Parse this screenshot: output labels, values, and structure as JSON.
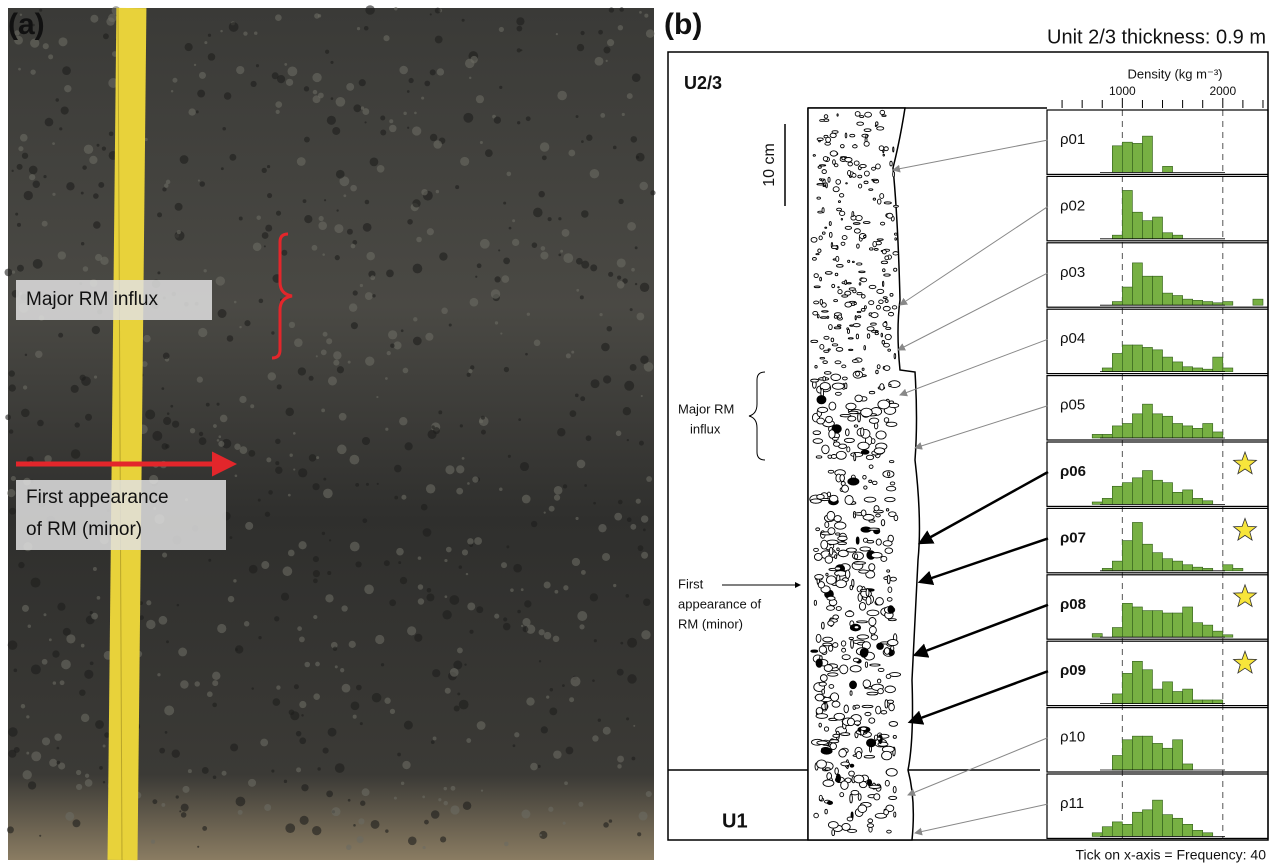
{
  "panel_a": {
    "label": "(a)",
    "major_influx": "Major RM influx",
    "first_appearance": [
      "First appearance",
      "of RM (minor)"
    ]
  },
  "panel_b": {
    "label": "(b)",
    "thickness": "Unit 2/3 thickness: 0.9 m",
    "unit_upper": "U2/3",
    "unit_lower": "U1",
    "scale_bar": "10 cm",
    "major_influx": [
      "Major RM",
      "influx"
    ],
    "first_appearance": [
      "First",
      "appearance of",
      "RM (minor)"
    ],
    "footnote": "Tick on x-axis = Frequency: 40"
  },
  "chart_data": {
    "type": "histogram",
    "xlabel": "Density (kg m⁻³)",
    "xlim": [
      250,
      2450
    ],
    "xticks": [
      1000,
      2000
    ],
    "minor_xticks": [
      400,
      600,
      800,
      1200,
      1400,
      1600,
      1800,
      2200,
      2400
    ],
    "ylim": [
      0,
      45
    ],
    "color": "#77b043",
    "bins": [
      400,
      500,
      600,
      700,
      800,
      900,
      1000,
      1100,
      1200,
      1300,
      1400,
      1500,
      1600,
      1700,
      1800,
      1900,
      2000,
      2100,
      2200,
      2300,
      2400
    ],
    "histograms": [
      {
        "label": "ρ01",
        "bold": false,
        "star": false,
        "counts": [
          0,
          0,
          0,
          0,
          0,
          22,
          25,
          24,
          30,
          0,
          5,
          0,
          0,
          0,
          0,
          0,
          0,
          0,
          0,
          0
        ]
      },
      {
        "label": "ρ02",
        "bold": false,
        "star": false,
        "counts": [
          0,
          0,
          0,
          0,
          0,
          3,
          40,
          22,
          15,
          18,
          5,
          3,
          0,
          0,
          0,
          0,
          0,
          0,
          0,
          0
        ]
      },
      {
        "label": "ρ03",
        "bold": false,
        "star": false,
        "counts": [
          0,
          0,
          0,
          0,
          0,
          3,
          15,
          35,
          24,
          24,
          10,
          8,
          5,
          4,
          3,
          2,
          3,
          0,
          0,
          5
        ]
      },
      {
        "label": "ρ04",
        "bold": false,
        "star": false,
        "counts": [
          0,
          0,
          0,
          0,
          3,
          15,
          22,
          22,
          20,
          18,
          12,
          8,
          4,
          3,
          2,
          12,
          3,
          0,
          0,
          0
        ]
      },
      {
        "label": "ρ05",
        "bold": false,
        "star": false,
        "counts": [
          0,
          0,
          0,
          3,
          3,
          10,
          12,
          20,
          28,
          20,
          18,
          12,
          10,
          8,
          12,
          5,
          0,
          0,
          0,
          0
        ]
      },
      {
        "label": "ρ06",
        "bold": true,
        "star": true,
        "counts": [
          0,
          0,
          0,
          2,
          5,
          15,
          18,
          22,
          28,
          20,
          18,
          10,
          12,
          5,
          3,
          0,
          0,
          0,
          0,
          0
        ]
      },
      {
        "label": "ρ07",
        "bold": true,
        "star": true,
        "counts": [
          0,
          0,
          0,
          0,
          2,
          8,
          25,
          40,
          22,
          15,
          10,
          8,
          5,
          3,
          2,
          0,
          5,
          2,
          0,
          0
        ]
      },
      {
        "label": "ρ08",
        "bold": true,
        "star": true,
        "counts": [
          0,
          0,
          0,
          3,
          0,
          8,
          28,
          25,
          22,
          22,
          20,
          20,
          25,
          12,
          10,
          5,
          2,
          0,
          0,
          0
        ]
      },
      {
        "label": "ρ09",
        "bold": true,
        "star": true,
        "counts": [
          0,
          0,
          0,
          0,
          0,
          8,
          25,
          35,
          28,
          12,
          18,
          10,
          12,
          3,
          3,
          3,
          0,
          0,
          0,
          0
        ]
      },
      {
        "label": "ρ10",
        "bold": false,
        "star": false,
        "counts": [
          0,
          0,
          0,
          0,
          0,
          12,
          25,
          28,
          28,
          22,
          18,
          25,
          5,
          0,
          0,
          0,
          0,
          0,
          0,
          0
        ]
      },
      {
        "label": "ρ11",
        "bold": false,
        "star": false,
        "counts": [
          0,
          0,
          0,
          3,
          8,
          12,
          10,
          20,
          22,
          30,
          18,
          15,
          10,
          5,
          3,
          0,
          0,
          0,
          0,
          0
        ]
      }
    ]
  }
}
